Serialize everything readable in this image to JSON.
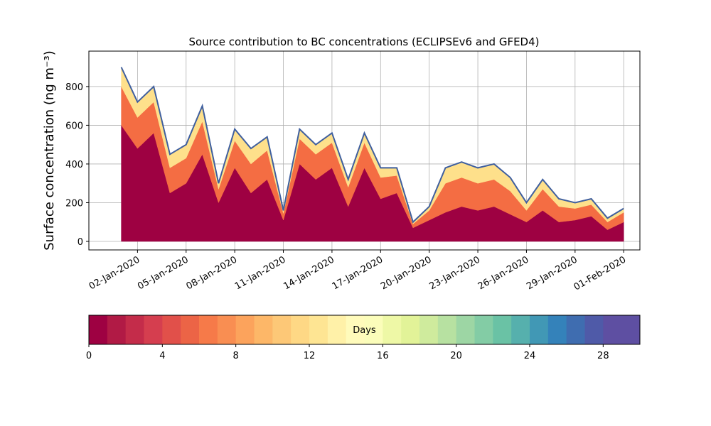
{
  "chart_data": {
    "type": "stacked_area",
    "title": "Source contribution to BC concentrations (ECLIPSEv6 and GFED4)",
    "ylabel": "Surface concentration (ng m⁻³)",
    "x": [
      "2020-01-01",
      "2020-01-02",
      "2020-01-03",
      "2020-01-04",
      "2020-01-05",
      "2020-01-06",
      "2020-01-07",
      "2020-01-08",
      "2020-01-09",
      "2020-01-10",
      "2020-01-11",
      "2020-01-12",
      "2020-01-13",
      "2020-01-14",
      "2020-01-15",
      "2020-01-16",
      "2020-01-17",
      "2020-01-18",
      "2020-01-19",
      "2020-01-20",
      "2020-01-21",
      "2020-01-22",
      "2020-01-23",
      "2020-01-24",
      "2020-01-25",
      "2020-01-26",
      "2020-01-27",
      "2020-01-28",
      "2020-01-29",
      "2020-01-30",
      "2020-01-31",
      "2020-02-01"
    ],
    "series": [
      {
        "color": "#9e0142",
        "values": [
          600,
          480,
          560,
          250,
          300,
          450,
          200,
          380,
          250,
          320,
          110,
          400,
          320,
          380,
          180,
          380,
          220,
          250,
          70,
          110,
          150,
          180,
          160,
          180,
          140,
          100,
          160,
          100,
          110,
          130,
          60,
          100
        ]
      },
      {
        "color": "#f46d43",
        "values": [
          200,
          160,
          160,
          130,
          130,
          170,
          70,
          140,
          150,
          150,
          35,
          130,
          130,
          130,
          100,
          130,
          110,
          90,
          20,
          50,
          150,
          150,
          140,
          140,
          120,
          60,
          110,
          80,
          60,
          60,
          40,
          50
        ]
      },
      {
        "color": "#fee08b",
        "values": [
          100,
          80,
          80,
          70,
          70,
          80,
          30,
          60,
          80,
          70,
          15,
          50,
          50,
          50,
          40,
          50,
          50,
          40,
          10,
          20,
          80,
          80,
          80,
          80,
          70,
          40,
          50,
          40,
          30,
          30,
          20,
          20
        ]
      }
    ],
    "outline_color": "#3f5f9f",
    "xlim": [
      "2019-12-30",
      "2020-02-02"
    ],
    "xticks": [
      {
        "value": "2020-01-02",
        "label": "02-Jan-2020"
      },
      {
        "value": "2020-01-05",
        "label": "05-Jan-2020"
      },
      {
        "value": "2020-01-08",
        "label": "08-Jan-2020"
      },
      {
        "value": "2020-01-11",
        "label": "11-Jan-2020"
      },
      {
        "value": "2020-01-14",
        "label": "14-Jan-2020"
      },
      {
        "value": "2020-01-17",
        "label": "17-Jan-2020"
      },
      {
        "value": "2020-01-20",
        "label": "20-Jan-2020"
      },
      {
        "value": "2020-01-23",
        "label": "23-Jan-2020"
      },
      {
        "value": "2020-01-26",
        "label": "26-Jan-2020"
      },
      {
        "value": "2020-01-29",
        "label": "29-Jan-2020"
      },
      {
        "value": "2020-02-01",
        "label": "01-Feb-2020"
      }
    ],
    "ylim": [
      -44,
      983
    ],
    "yticks": [
      0,
      200,
      400,
      600,
      800
    ],
    "grid": true,
    "colorbar": {
      "label": "Days",
      "lim": [
        0,
        30
      ],
      "ticks": [
        0,
        4,
        8,
        12,
        16,
        20,
        24,
        28
      ],
      "colors": [
        "#9e0142",
        "#b11a45",
        "#c42c4a",
        "#d53e4f",
        "#e1504a",
        "#ec6446",
        "#f67a49",
        "#f98e52",
        "#fca35c",
        "#fdb768",
        "#fdc877",
        "#fed885",
        "#fee593",
        "#fff1a8",
        "#fffbbb",
        "#fbfdba",
        "#eef8a6",
        "#e2f398",
        "#cfeb9d",
        "#b7e1a1",
        "#9dd6a4",
        "#83cca5",
        "#6ac2a5",
        "#56b0ad",
        "#4198b5",
        "#3482ba",
        "#3f6db0",
        "#4f5aa8",
        "#5e4fa2",
        "#5e4fa2"
      ]
    }
  }
}
